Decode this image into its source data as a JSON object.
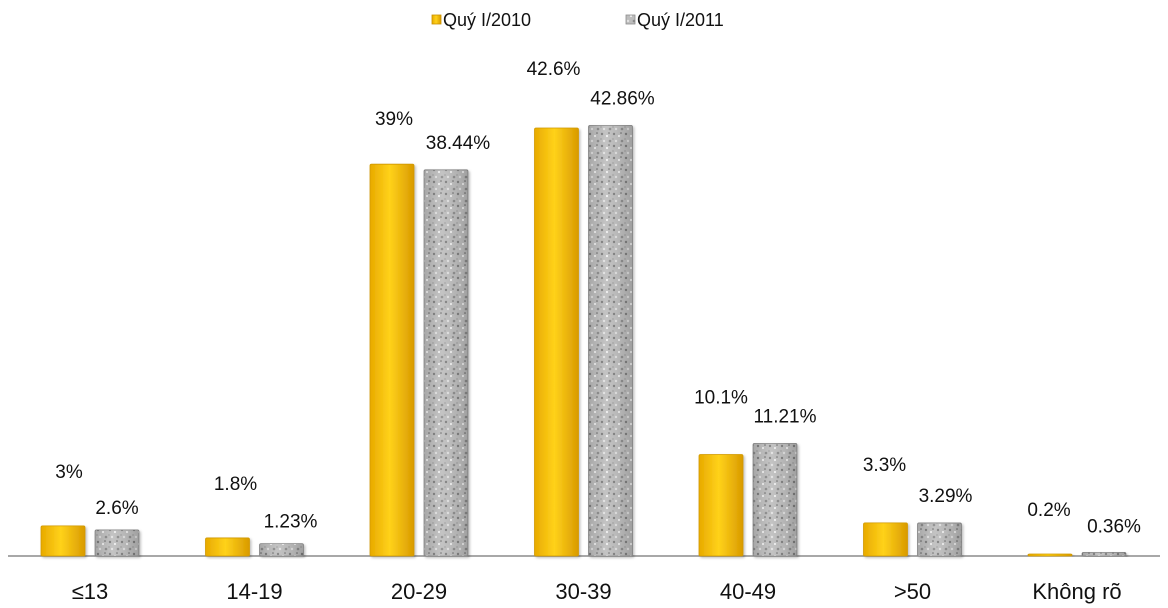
{
  "chart_data": {
    "type": "bar",
    "categories": [
      "≤13",
      "14-19",
      "20-29",
      "30-39",
      "40-49",
      ">50",
      "Không rõ"
    ],
    "series": [
      {
        "name": "Quý I/2010",
        "values": [
          3,
          1.8,
          39,
          42.6,
          10.1,
          3.3,
          0.2
        ],
        "labels": [
          "3%",
          "1.8%",
          "39%",
          "42.6%",
          "10.1%",
          "3.3%",
          "0.2%"
        ],
        "color": "#FFC000",
        "pattern": "solid"
      },
      {
        "name": "Quý I/2011",
        "values": [
          2.6,
          1.23,
          38.44,
          42.86,
          11.21,
          3.29,
          0.36
        ],
        "labels": [
          "2.6%",
          "1.23%",
          "38.44%",
          "42.86%",
          "11.21%",
          "3.29%",
          "0.36%"
        ],
        "color": "#B8B8B8",
        "pattern": "granite"
      }
    ],
    "title": "",
    "xlabel": "",
    "ylabel": "",
    "ylim": [
      0,
      43
    ],
    "grid": false,
    "legend": "top-center"
  }
}
